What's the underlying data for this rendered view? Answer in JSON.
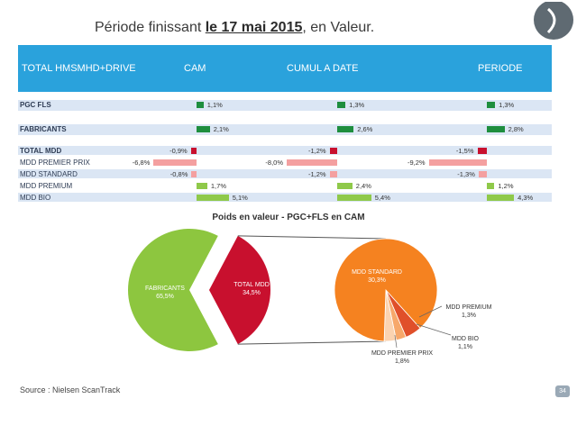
{
  "title": {
    "prefix": "Période finissant ",
    "date": "le 17 mai 2015",
    "suffix": ", en Valeur."
  },
  "header": {
    "col_label": "TOTAL HMSMHD+DRIVE",
    "col_cam": "CAM",
    "col_cumul": "CUMUL A DATE",
    "col_periode": "PERIODE"
  },
  "colors": {
    "header_band": "#2aa2dc",
    "row_band": "#dbe6f4",
    "positive": "#1e8e3e",
    "positive_light": "#8fc94a",
    "negative": "#c8102e",
    "negative_light": "#f4a0a0",
    "fabricants": "#8dc63f",
    "total_mdd": "#c8102e",
    "mdd_standard": "#f58220"
  },
  "table": {
    "rows": [
      {
        "label": "PGC FLS",
        "bold": true,
        "cam": "1,1%",
        "cumul": "1,3%",
        "periode": "1,3%",
        "cam_v": 1.1,
        "cumul_v": 1.3,
        "periode_v": 1.3
      },
      {
        "label": "FABRICANTS",
        "bold": true,
        "cam": "2,1%",
        "cumul": "2,6%",
        "periode": "2,8%",
        "cam_v": 2.1,
        "cumul_v": 2.6,
        "periode_v": 2.8
      },
      {
        "label": "TOTAL MDD",
        "bold": true,
        "cam": "-0,9%",
        "cumul": "-1,2%",
        "periode": "-1,5%",
        "cam_v": -0.9,
        "cumul_v": -1.2,
        "periode_v": -1.5
      },
      {
        "label": "MDD PREMIER PRIX",
        "bold": false,
        "cam": "-6,8%",
        "cumul": "-8,0%",
        "periode": "-9,2%",
        "cam_v": -6.8,
        "cumul_v": -8.0,
        "periode_v": -9.2
      },
      {
        "label": "MDD STANDARD",
        "bold": false,
        "cam": "-0,8%",
        "cumul": "-1,2%",
        "periode": "-1,3%",
        "cam_v": -0.8,
        "cumul_v": -1.2,
        "periode_v": -1.3
      },
      {
        "label": "MDD PREMIUM",
        "bold": false,
        "cam": "1,7%",
        "cumul": "2,4%",
        "periode": "1,2%",
        "cam_v": 1.7,
        "cumul_v": 2.4,
        "periode_v": 1.2
      },
      {
        "label": "MDD BIO",
        "bold": false,
        "cam": "5,1%",
        "cumul": "5,4%",
        "periode": "4,3%",
        "cam_v": 5.1,
        "cumul_v": 5.4,
        "periode_v": 4.3
      }
    ]
  },
  "chart_data": {
    "type": "pie",
    "title": "Poids en valeur - PGC+FLS en CAM",
    "main_pie": [
      {
        "name": "FABRICANTS",
        "label": "65,5%",
        "value": 65.5,
        "color": "#8dc63f"
      },
      {
        "name": "TOTAL MDD",
        "label": "34,5%",
        "value": 34.5,
        "color": "#c8102e"
      }
    ],
    "sub_pie": [
      {
        "name": "MDD STANDARD",
        "label": "30,3%",
        "value": 30.3,
        "color": "#f58220"
      },
      {
        "name": "MDD PREMIER PRIX",
        "label": "1,8%",
        "value": 1.8,
        "color": "#e0502a"
      },
      {
        "name": "MDD BIO",
        "label": "1,1%",
        "value": 1.1,
        "color": "#f7a86a"
      },
      {
        "name": "MDD PREMIUM",
        "label": "1,3%",
        "value": 1.3,
        "color": "#fbd3b0"
      }
    ]
  },
  "footer": {
    "source": "Source : Nielsen ScanTrack",
    "page": "34"
  }
}
